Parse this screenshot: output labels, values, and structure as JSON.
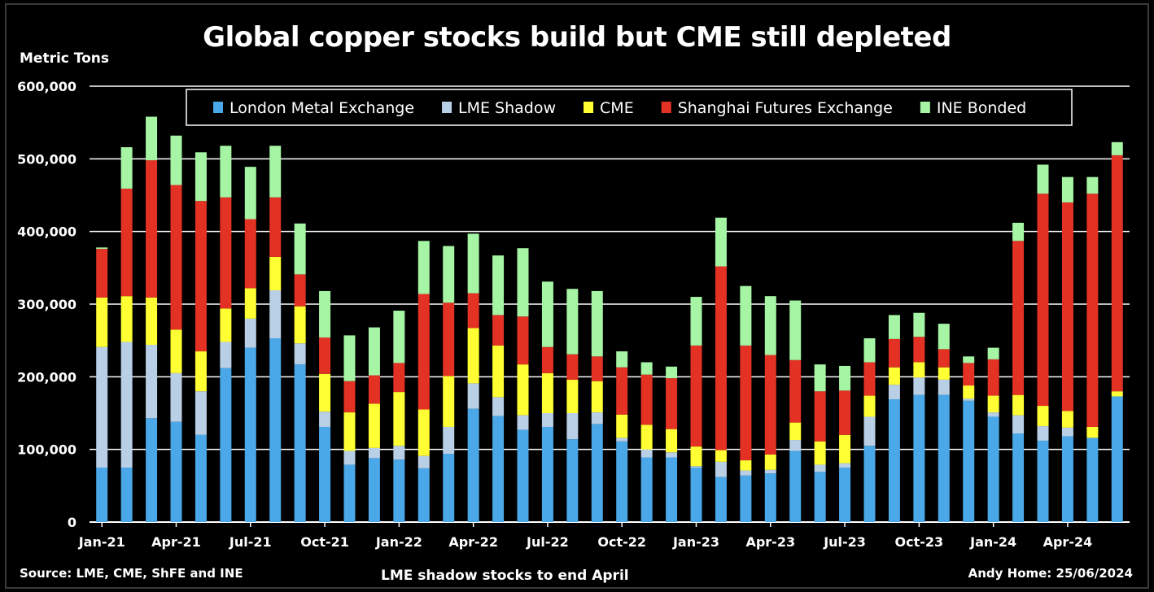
{
  "chart_data": {
    "type": "bar",
    "stacked": true,
    "title": "Global copper stocks build but CME still depleted",
    "ylabel": "Metric Tons",
    "ylim": [
      0,
      600000
    ],
    "yticks": [
      0,
      100000,
      200000,
      300000,
      400000,
      500000,
      600000
    ],
    "ytick_labels": [
      "0",
      "100,000",
      "200,000",
      "300,000",
      "400,000",
      "500,000",
      "600,000"
    ],
    "grid": true,
    "legend": "top",
    "categories": [
      "Jan-21",
      "Feb-21",
      "Mar-21",
      "Apr-21",
      "May-21",
      "Jun-21",
      "Jul-21",
      "Aug-21",
      "Sep-21",
      "Oct-21",
      "Nov-21",
      "Dec-21",
      "Jan-22",
      "Feb-22",
      "Mar-22",
      "Apr-22",
      "May-22",
      "Jun-22",
      "Jul-22",
      "Aug-22",
      "Sep-22",
      "Oct-22",
      "Nov-22",
      "Dec-22",
      "Jan-23",
      "Feb-23",
      "Mar-23",
      "Apr-23",
      "May-23",
      "Jun-23",
      "Jul-23",
      "Aug-23",
      "Sep-23",
      "Oct-23",
      "Nov-23",
      "Dec-23",
      "Jan-24",
      "Feb-24",
      "Mar-24",
      "Apr-24",
      "May-24",
      "Jun-24"
    ],
    "xtick_labels": [
      "Jan-21",
      "Apr-21",
      "Jul-21",
      "Oct-21",
      "Jan-22",
      "Apr-22",
      "Jul-22",
      "Oct-22",
      "Jan-23",
      "Apr-23",
      "Jul-23",
      "Oct-23",
      "Jan-24",
      "Apr-24"
    ],
    "series": [
      {
        "name": "London Metal Exchange",
        "color": "#4aa8e8",
        "values": [
          75000,
          75000,
          143000,
          138000,
          120000,
          212000,
          240000,
          253000,
          217000,
          131000,
          79000,
          88000,
          86000,
          74000,
          94000,
          156000,
          146000,
          127000,
          131000,
          114000,
          135000,
          111000,
          89000,
          89000,
          75000,
          62000,
          64000,
          67000,
          98000,
          69000,
          75000,
          105000,
          169000,
          175000,
          175000,
          167000,
          145000,
          122000,
          112000,
          118000,
          116000,
          173000
        ]
      },
      {
        "name": "LME Shadow",
        "color": "#b8cfe6",
        "values": [
          166000,
          173000,
          101000,
          67000,
          60000,
          36000,
          40000,
          66000,
          29000,
          21000,
          19000,
          14000,
          19000,
          17000,
          37000,
          35000,
          26000,
          20000,
          19000,
          36000,
          16000,
          5000,
          11000,
          7000,
          2000,
          21000,
          7000,
          5000,
          15000,
          10000,
          6000,
          40000,
          20000,
          24000,
          21000,
          3000,
          6000,
          25000,
          20000,
          12000,
          0,
          0
        ]
      },
      {
        "name": "CME",
        "color": "#ffff33",
        "values": [
          68000,
          63000,
          65000,
          60000,
          55000,
          46000,
          42000,
          46000,
          51000,
          52000,
          53000,
          61000,
          74000,
          64000,
          70000,
          76000,
          71000,
          70000,
          55000,
          46000,
          43000,
          32000,
          34000,
          32000,
          27000,
          16000,
          14000,
          21000,
          24000,
          32000,
          39000,
          29000,
          24000,
          21000,
          17000,
          18000,
          23000,
          28000,
          28000,
          23000,
          15000,
          7000
        ]
      },
      {
        "name": "Shanghai Futures Exchange",
        "color": "#e33224",
        "values": [
          67000,
          148000,
          189000,
          199000,
          207000,
          153000,
          95000,
          82000,
          44000,
          50000,
          43000,
          39000,
          40000,
          159000,
          101000,
          48000,
          42000,
          66000,
          36000,
          35000,
          34000,
          65000,
          69000,
          70000,
          139000,
          253000,
          158000,
          137000,
          86000,
          69000,
          61000,
          46000,
          39000,
          35000,
          25000,
          31000,
          50000,
          212000,
          292000,
          287000,
          321000,
          325000
        ]
      },
      {
        "name": "INE Bonded",
        "color": "#a5f5a5",
        "values": [
          2000,
          57000,
          60000,
          68000,
          67000,
          71000,
          72000,
          71000,
          70000,
          64000,
          63000,
          66000,
          72000,
          73000,
          78000,
          82000,
          82000,
          94000,
          90000,
          90000,
          90000,
          22000,
          17000,
          16000,
          67000,
          67000,
          82000,
          81000,
          82000,
          37000,
          34000,
          33000,
          33000,
          33000,
          35000,
          9000,
          16000,
          25000,
          40000,
          35000,
          23000,
          18000
        ]
      }
    ]
  },
  "footer": {
    "source": "Source: LME, CME, ShFE and INE",
    "note": "LME shadow stocks to end April",
    "author": "Andy Home: 25/06/2024"
  }
}
